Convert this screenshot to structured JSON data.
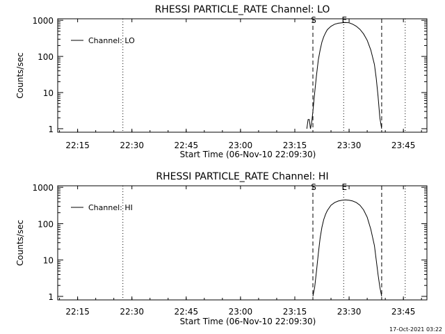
{
  "footer_text": "17-Oct-2021 03:22",
  "chart_data": [
    {
      "type": "line",
      "title": "RHESSI PARTICLE_RATE Channel: LO",
      "xlabel": "Start Time (06-Nov-10 22:09:30)",
      "ylabel": "Counts/sec",
      "y_scale": "log",
      "ylim": [
        0.8,
        1100
      ],
      "xlim": [
        "22:09:30",
        "23:51:30"
      ],
      "x_ticks": [
        "22:15",
        "22:30",
        "22:45",
        "23:00",
        "23:15",
        "23:30",
        "23:45"
      ],
      "y_ticks": [
        "1",
        "10",
        "100",
        "1000"
      ],
      "legend": {
        "position": "top-left",
        "entries": [
          "Channel: LO"
        ]
      },
      "markers": [
        {
          "label": "",
          "style": "dotted",
          "time": "22:27:30"
        },
        {
          "label": "S",
          "style": "dashed",
          "time": "23:20:00"
        },
        {
          "label": "E",
          "style": "dotted",
          "time": "23:28:30"
        },
        {
          "label": "",
          "style": "dashed",
          "time": "23:39:00"
        },
        {
          "label": "",
          "style": "dotted",
          "time": "23:45:30"
        }
      ],
      "series": [
        {
          "name": "Channel: LO",
          "x": [
            "23:18:20",
            "23:18:40",
            "23:19:00",
            "23:19:20",
            "23:19:40",
            "23:20:00",
            "23:20:30",
            "23:21:00",
            "23:21:30",
            "23:22:00",
            "23:22:30",
            "23:23:00",
            "23:23:30",
            "23:24:00",
            "23:25:00",
            "23:26:00",
            "23:27:00",
            "23:28:00",
            "23:29:00",
            "23:30:00",
            "23:31:00",
            "23:32:00",
            "23:33:00",
            "23:34:00",
            "23:35:00",
            "23:36:00",
            "23:37:00",
            "23:37:30",
            "23:38:00",
            "23:38:30",
            "23:39:00"
          ],
          "y": [
            1,
            1.8,
            1.8,
            1,
            1.5,
            3,
            10,
            30,
            80,
            150,
            250,
            350,
            450,
            550,
            680,
            780,
            830,
            850,
            870,
            850,
            780,
            680,
            560,
            420,
            280,
            150,
            60,
            25,
            8,
            2,
            1
          ]
        }
      ]
    },
    {
      "type": "line",
      "title": "RHESSI PARTICLE_RATE Channel: HI",
      "xlabel": "Start Time (06-Nov-10 22:09:30)",
      "ylabel": "Counts/sec",
      "y_scale": "log",
      "ylim": [
        0.8,
        1100
      ],
      "xlim": [
        "22:09:30",
        "23:51:30"
      ],
      "x_ticks": [
        "22:15",
        "22:30",
        "22:45",
        "23:00",
        "23:15",
        "23:30",
        "23:45"
      ],
      "y_ticks": [
        "1",
        "10",
        "100",
        "1000"
      ],
      "legend": {
        "position": "top-left",
        "entries": [
          "Channel: HI"
        ]
      },
      "markers": [
        {
          "label": "",
          "style": "dotted",
          "time": "22:27:30"
        },
        {
          "label": "S",
          "style": "dashed",
          "time": "23:20:00"
        },
        {
          "label": "E",
          "style": "dotted",
          "time": "23:28:30"
        },
        {
          "label": "",
          "style": "dashed",
          "time": "23:39:00"
        },
        {
          "label": "",
          "style": "dotted",
          "time": "23:45:30"
        }
      ],
      "series": [
        {
          "name": "Channel: HI",
          "x": [
            "23:20:00",
            "23:20:30",
            "23:21:00",
            "23:21:30",
            "23:22:00",
            "23:22:30",
            "23:23:00",
            "23:23:30",
            "23:24:00",
            "23:25:00",
            "23:26:00",
            "23:27:00",
            "23:28:00",
            "23:29:00",
            "23:30:00",
            "23:31:00",
            "23:32:00",
            "23:33:00",
            "23:34:00",
            "23:35:00",
            "23:36:00",
            "23:37:00",
            "23:37:30",
            "23:38:00",
            "23:38:30",
            "23:39:00"
          ],
          "y": [
            1,
            1.8,
            5,
            15,
            40,
            80,
            130,
            180,
            230,
            320,
            380,
            420,
            440,
            450,
            440,
            420,
            380,
            320,
            240,
            150,
            70,
            25,
            10,
            4,
            1.8,
            1
          ]
        }
      ]
    }
  ]
}
